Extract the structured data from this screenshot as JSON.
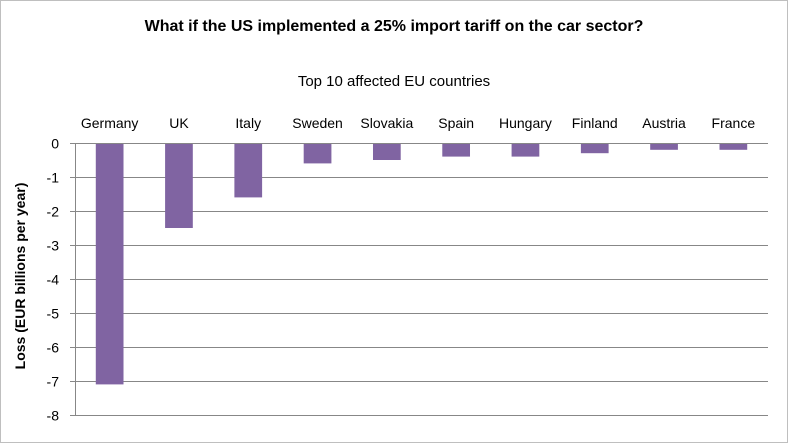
{
  "chart_data": {
    "type": "bar",
    "title": "What if the US implemented a 25% import tariff on the car sector?",
    "subtitle": "Top 10 affected  EU countries",
    "xlabel": "",
    "ylabel": "Loss (EUR billions per year)",
    "categories": [
      "Germany",
      "UK",
      "Italy",
      "Sweden",
      "Slovakia",
      "Spain",
      "Hungary",
      "Finland",
      "Austria",
      "France"
    ],
    "values": [
      -7.1,
      -2.5,
      -1.6,
      -0.6,
      -0.5,
      -0.4,
      -0.4,
      -0.3,
      -0.2,
      -0.2
    ],
    "ylim": [
      -8,
      0
    ],
    "yticks": [
      0,
      -1,
      -2,
      -3,
      -4,
      -5,
      -6,
      -7,
      -8
    ],
    "ytick_labels": [
      "0",
      "-1",
      "-2",
      "-3",
      "-4",
      "-5",
      "-6",
      "-7",
      "-8"
    ],
    "grid": true,
    "category_labels_position": "top",
    "bar_color": "#8064a2",
    "grid_color": "#878787"
  }
}
